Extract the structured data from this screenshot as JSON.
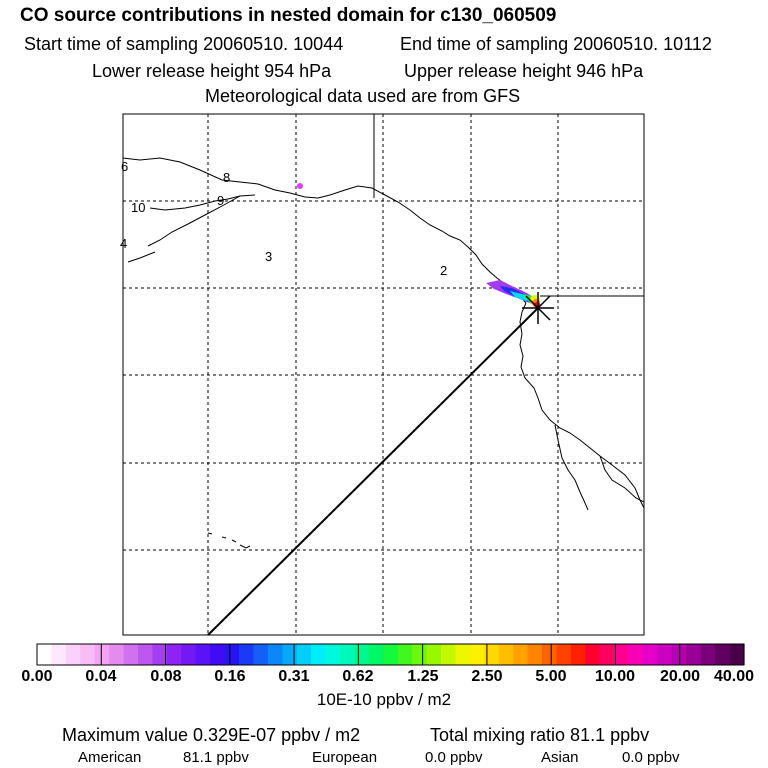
{
  "title": "CO  source contributions in nested domain for c130_060509",
  "sampling": {
    "start": "Start time of sampling 20060510. 10044",
    "end": "End time of sampling 20060510. 10112"
  },
  "release": {
    "lower": "Lower release height  954 hPa",
    "upper": "Upper release height  946 hPa"
  },
  "met_note": "Meteorological data used are from GFS",
  "map": {
    "trajectory_labels": [
      "6",
      "8",
      "10",
      "9",
      "4",
      "3",
      "2"
    ],
    "colors": {
      "coast": "#000000",
      "grid": "#000000",
      "trajectory": "#000000",
      "marker": "#000000"
    }
  },
  "colorbar": {
    "tick_labels": [
      "0.00",
      "0.04",
      "0.08",
      "0.16",
      "0.31",
      "0.62",
      "1.25",
      "2.50",
      "5.00",
      "10.00",
      "20.00",
      "40.00"
    ],
    "colors": [
      "#ffffff",
      "#fde8fc",
      "#fad2f9",
      "#f7bcf6",
      "#f2a4f3",
      "#e58bf0",
      "#d271ef",
      "#be57ee",
      "#a63df0",
      "#8e23f3",
      "#7418f5",
      "#5a12f6",
      "#400cf5",
      "#2a14f4",
      "#1c3af6",
      "#1460f7",
      "#0c86f8",
      "#06aaf9",
      "#02cefa",
      "#00eefa",
      "#00f8dc",
      "#00f8b8",
      "#00f890",
      "#00f868",
      "#14f840",
      "#40f820",
      "#6cf80c",
      "#98f800",
      "#c4f800",
      "#ecf800",
      "#fff000",
      "#ffd800",
      "#ffbe00",
      "#ffa200",
      "#ff8400",
      "#ff6400",
      "#ff4200",
      "#ff2000",
      "#ff0030",
      "#ff0060",
      "#ff0090",
      "#f800b8",
      "#e400c8",
      "#cc00c0",
      "#b400b0",
      "#980098",
      "#7c007c",
      "#600060",
      "#4a0048"
    ],
    "units": "10E-10 ppbv / m2"
  },
  "summary": {
    "max_value": "Maximum value  0.329E-07 ppbv / m2",
    "total_mixing": "Total mixing ratio      81.1 ppbv",
    "regions": [
      {
        "name": "American",
        "value": "81.1 ppbv"
      },
      {
        "name": "European",
        "value": "0.0 ppbv"
      },
      {
        "name": "Asian",
        "value": "0.0 ppbv"
      }
    ]
  }
}
